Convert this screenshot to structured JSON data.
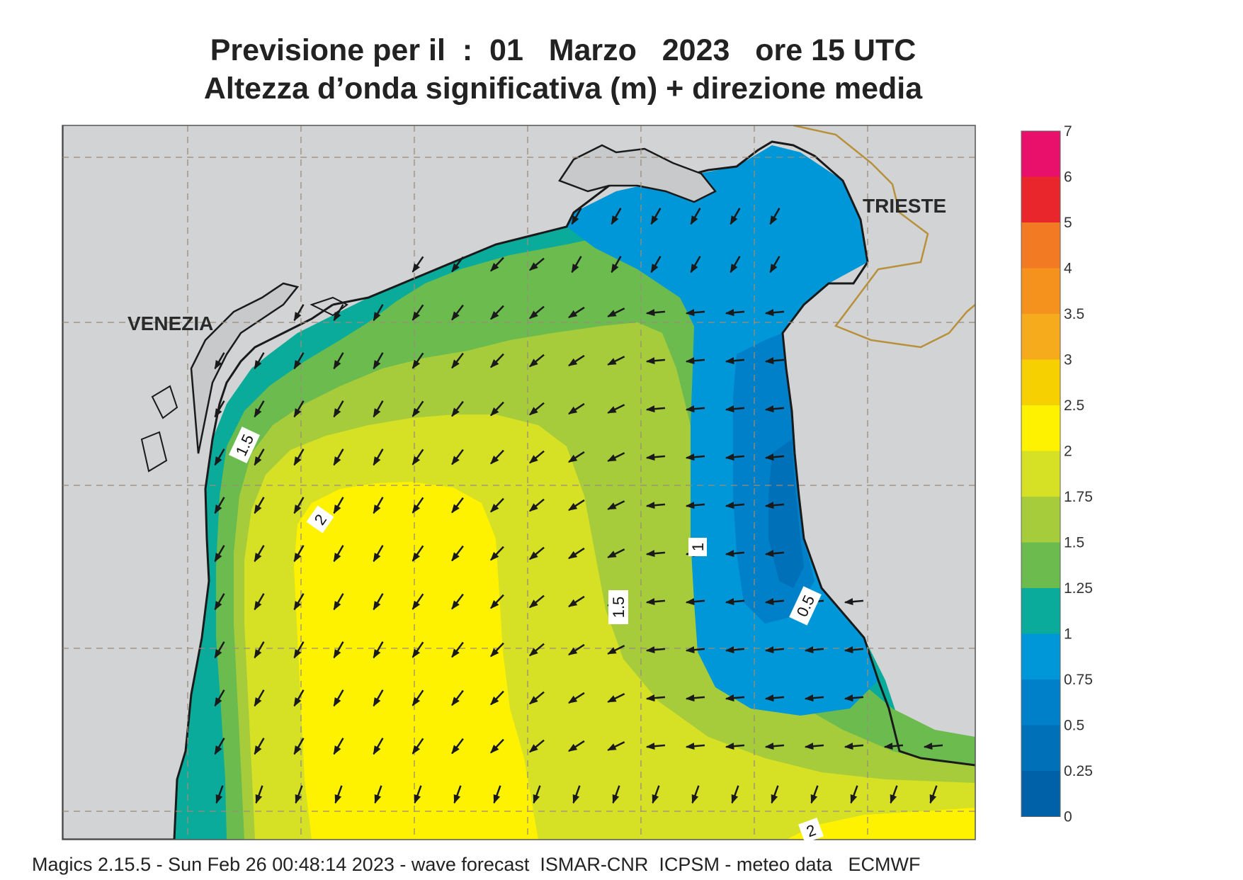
{
  "title": {
    "line1": "Previsione per il  :  01   Marzo   2023   ore 15 UTC",
    "line2": "Altezza d’onda significativa (m) + direzione media"
  },
  "cities": {
    "venezia": "VENEZIA",
    "trieste": "TRIESTE"
  },
  "contour_labels": {
    "l15_west": "1.5",
    "l2_west": "2",
    "l1_center": "1",
    "l15_center": "1.5",
    "l05_east": "0.5",
    "l2_south": "2"
  },
  "legend": {
    "ticks": [
      "7",
      "6",
      "5",
      "4",
      "3.5",
      "3",
      "2.5",
      "2",
      "1.75",
      "1.5",
      "1.25",
      "1",
      "0.75",
      "0.5",
      "0.25",
      "0"
    ],
    "colors": [
      "#e8106a",
      "#e8262c",
      "#f27a22",
      "#f5921e",
      "#f6ab1c",
      "#f6d000",
      "#fff200",
      "#d6e024",
      "#a6cc3c",
      "#6cbb4f",
      "#0aab9a",
      "#0097d8",
      "#0080c8",
      "#0070b8",
      "#0060a8"
    ]
  },
  "colors": {
    "land": "#d1d3d4",
    "coast": "#1a1a1a",
    "border": "#b8903a",
    "grid": "#9a8c78",
    "arrow": "#1a1a1a"
  },
  "footer": "Magics 2.15.5 - Sun Feb 26 00:48:14 2023 - wave forecast  ISMAR-CNR  ICPSM - meteo data   ECMWF"
}
